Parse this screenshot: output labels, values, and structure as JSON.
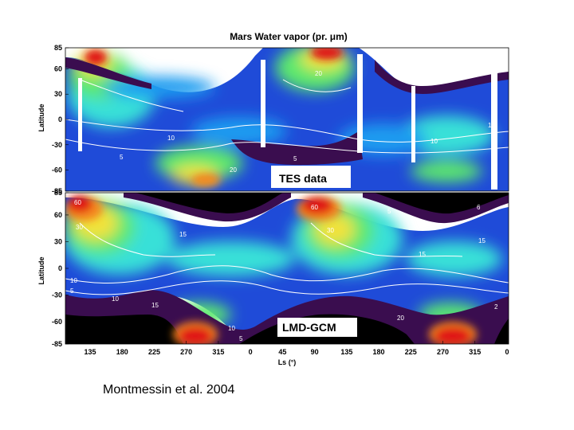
{
  "chart_data": {
    "type": "heatmap",
    "title": "Mars Water vapor (pr. μm)",
    "xlabel": "Ls (°)",
    "ylabel": "Latitude",
    "ylim": [
      -85,
      85
    ],
    "y_ticks": [
      "85",
      "60",
      "30",
      "0",
      "-30",
      "-60",
      "-85"
    ],
    "x_ticks": [
      "135",
      "180",
      "225",
      "270",
      "315",
      "0",
      "45",
      "90",
      "135",
      "180",
      "225",
      "270",
      "315",
      "0"
    ],
    "panels": [
      {
        "label": "TES data",
        "x_range": [
          103,
          355
        ],
        "contour_labels": [
          "20",
          "5",
          "10",
          "10",
          "5",
          "20",
          "10"
        ],
        "maxima": [
          {
            "x": 125,
            "y": 65,
            "value": 60
          },
          {
            "x": 250,
            "y": 75,
            "value": 60
          },
          {
            "x": 165,
            "y": -75,
            "value": 25
          }
        ]
      },
      {
        "label": "LMD-GCM",
        "x_range": [
          103,
          355
        ],
        "contour_labels": [
          "60",
          "30",
          "15",
          "10",
          "5",
          "15",
          "10",
          "60",
          "30",
          "15",
          "5",
          "6",
          "15",
          "10",
          "5",
          "20",
          "2"
        ],
        "maxima": [
          {
            "x": 115,
            "y": 70,
            "value": 60
          },
          {
            "x": 250,
            "y": 72,
            "value": 60
          },
          {
            "x": 180,
            "y": -72,
            "value": 60
          },
          {
            "x": 318,
            "y": -72,
            "value": 60
          }
        ]
      }
    ],
    "colors": [
      "#3a0d4f",
      "#1a2ecc",
      "#1e9bf0",
      "#38e0d8",
      "#5ce86e",
      "#f2e23a",
      "#f58a1f",
      "#e01818"
    ]
  },
  "credit": "Montmessin et al. 2004"
}
